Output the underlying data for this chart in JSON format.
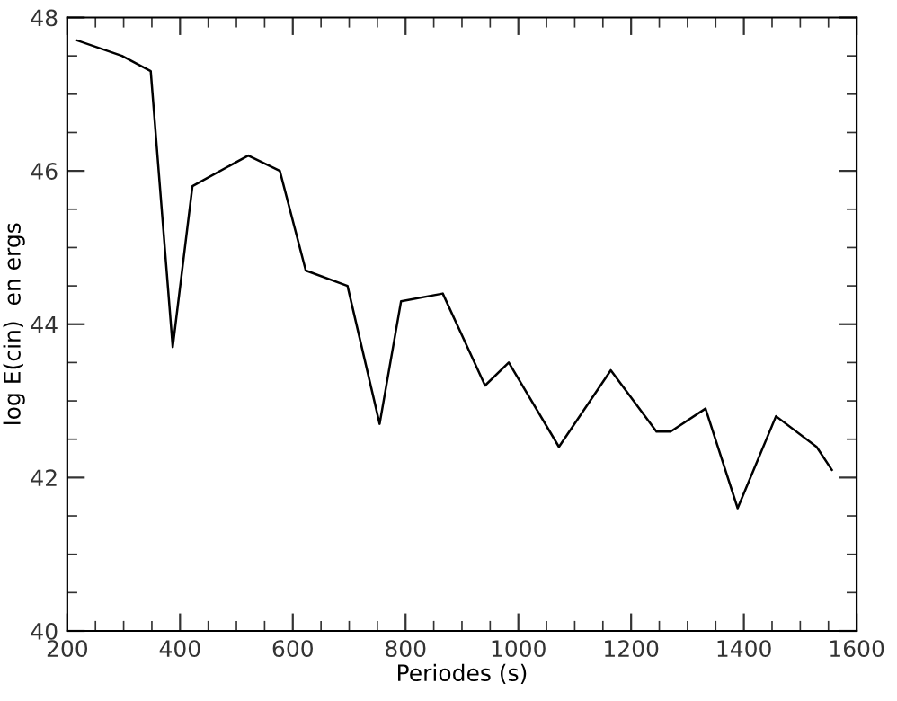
{
  "chart_data": {
    "type": "line",
    "xlabel": "Periodes (s)",
    "ylabel": "log E(cin)  en ergs",
    "x": [
      218,
      297,
      348,
      387,
      422,
      521,
      577,
      623,
      697,
      754,
      792,
      866,
      941,
      983,
      1072,
      1164,
      1245,
      1270,
      1332,
      1389,
      1457,
      1529,
      1556
    ],
    "series": [
      {
        "color": "#000000",
        "values": [
          47.7,
          47.5,
          47.3,
          43.7,
          45.8,
          46.2,
          46.0,
          44.7,
          44.5,
          42.7,
          44.3,
          44.4,
          43.2,
          43.5,
          42.4,
          43.4,
          42.6,
          42.6,
          42.9,
          41.6,
          42.8,
          42.4,
          42.1
        ]
      }
    ],
    "xlim": [
      200,
      1600
    ],
    "xticks": [
      200,
      400,
      600,
      800,
      1000,
      1200,
      1400,
      1600
    ],
    "ylim": [
      40,
      48
    ],
    "yticks": [
      40,
      42,
      44,
      46,
      48
    ],
    "grid": false,
    "legend": false,
    "marker": "none",
    "line_style": "solid"
  }
}
